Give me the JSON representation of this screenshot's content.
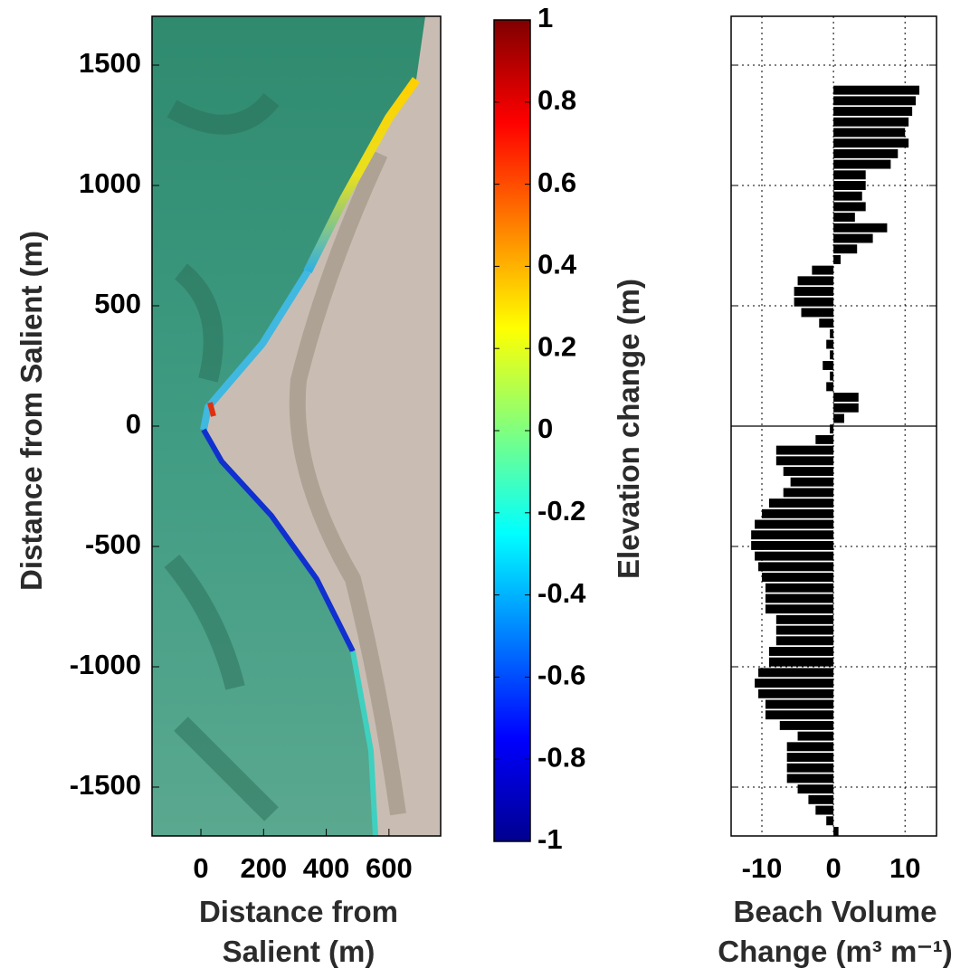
{
  "chart_data": [
    {
      "type": "image",
      "ylabel": "Distance from Salient (m)",
      "xlabel": "Distance from Salient (m)",
      "xlim": [
        -156,
        765
      ],
      "ylim": [
        -1703,
        1703
      ],
      "xticks": [
        0,
        200,
        400,
        600
      ],
      "yticks": [
        -1500,
        -1000,
        -500,
        0,
        500,
        1000,
        1500
      ],
      "colorbar": {
        "label": "Elevation change (m)",
        "lim": [
          -1,
          1
        ],
        "ticks": [
          -1,
          -0.8,
          -0.6,
          -0.4,
          -0.2,
          0,
          0.2,
          0.4,
          0.6,
          0.8,
          1
        ]
      }
    },
    {
      "type": "barh",
      "xlabel": "Beach Volume Change (m³ m⁻¹)",
      "color": "#000000",
      "xlim": [
        -14.3,
        14.4
      ],
      "ylim": [
        -1703,
        1703
      ],
      "xticks": [
        -10,
        0,
        10
      ],
      "yticks": [
        -1500,
        -1000,
        -500,
        0,
        500,
        1000,
        1500
      ],
      "grid": true,
      "zero_line": true,
      "y": [
        1396,
        1352,
        1308,
        1264,
        1220,
        1176,
        1132,
        1088,
        1044,
        1000,
        956,
        912,
        868,
        824,
        780,
        736,
        692,
        648,
        604,
        560,
        516,
        472,
        428,
        384,
        340,
        296,
        252,
        208,
        164,
        120,
        76,
        32,
        -12,
        -56,
        -100,
        -144,
        -188,
        -232,
        -276,
        -320,
        -364,
        -408,
        -452,
        -496,
        -540,
        -584,
        -628,
        -672,
        -716,
        -760,
        -804,
        -848,
        -892,
        -936,
        -980,
        -1024,
        -1068,
        -1112,
        -1156,
        -1200,
        -1244,
        -1288,
        -1332,
        -1376,
        -1420,
        -1464,
        -1508,
        -1552,
        -1596,
        -1640,
        -1684
      ],
      "values": [
        12,
        11.5,
        11,
        10.5,
        10,
        10.5,
        9,
        8,
        4.5,
        4.5,
        4,
        4.5,
        3,
        7.5,
        5.5,
        3.3,
        1,
        -3,
        -5,
        -5.5,
        -5.5,
        -4.5,
        -2,
        -0.5,
        -1,
        -0.5,
        -1.5,
        -0.5,
        -1,
        3.5,
        3.5,
        1.5,
        -0.5,
        -2.5,
        -8,
        -8,
        -7,
        -6,
        -7,
        -9,
        -10,
        -11,
        -11.5,
        -11.5,
        -11,
        -10.5,
        -10,
        -9.5,
        -9.5,
        -9.5,
        -8,
        -8,
        -8,
        -9,
        -9,
        -10.5,
        -11,
        -10.5,
        -9.5,
        -9.5,
        -7.5,
        -5,
        -6.5,
        -6.5,
        -6.5,
        -6.5,
        -5,
        -3.5,
        -2.5,
        -1,
        0.7
      ]
    }
  ]
}
